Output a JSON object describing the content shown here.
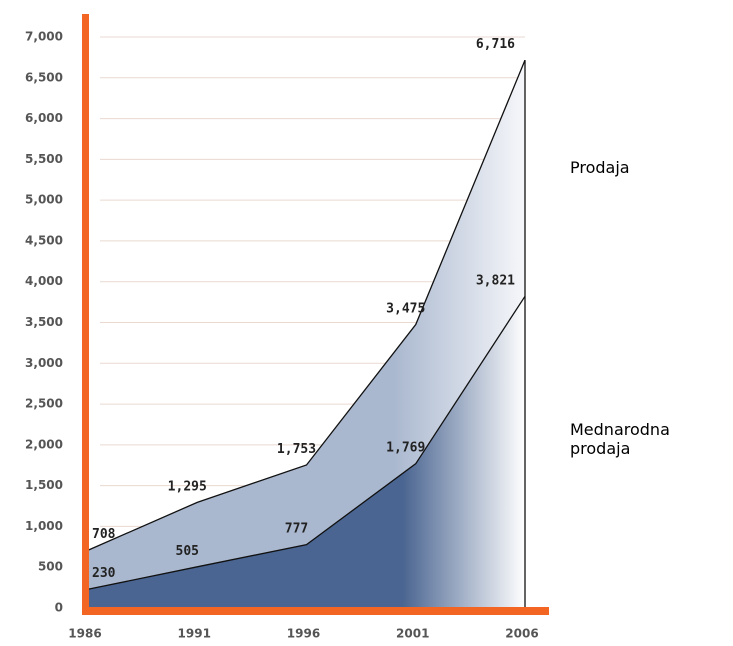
{
  "chart_data": {
    "type": "area",
    "categories": [
      "1986",
      "1991",
      "1996",
      "2001",
      "2006"
    ],
    "series": [
      {
        "name": "Prodaja",
        "color": "#aab8cf",
        "values": [
          708,
          1295,
          1753,
          3475,
          6716
        ],
        "value_labels": [
          "708",
          "1,295",
          "1,753",
          "3,475",
          "6,716"
        ]
      },
      {
        "name": "Mednarodna prodaja",
        "color": "#4a6591",
        "values": [
          230,
          505,
          777,
          1769,
          3821
        ],
        "value_labels": [
          "230",
          "505",
          "777",
          "1,769",
          "3,821"
        ]
      }
    ],
    "ylim": [
      0,
      7000
    ],
    "yticks": [
      0,
      500,
      {
        "value": 1000,
        "label": "1,000"
      },
      {
        "value": 1500,
        "label": "1,500"
      },
      {
        "value": 2000,
        "label": "2,000"
      },
      {
        "value": 2500,
        "label": "2,500"
      },
      {
        "value": 3000,
        "label": "3,000"
      },
      {
        "value": 3500,
        "label": "3,500"
      },
      {
        "value": 4000,
        "label": "4,000"
      },
      {
        "value": 4500,
        "label": "4,500"
      },
      {
        "value": 5000,
        "label": "5,000"
      },
      {
        "value": 5500,
        "label": "5,500"
      },
      {
        "value": 6000,
        "label": "6,000"
      },
      {
        "value": 6500,
        "label": "6,500"
      },
      {
        "value": 7000,
        "label": "7,000"
      }
    ],
    "grid": true
  }
}
